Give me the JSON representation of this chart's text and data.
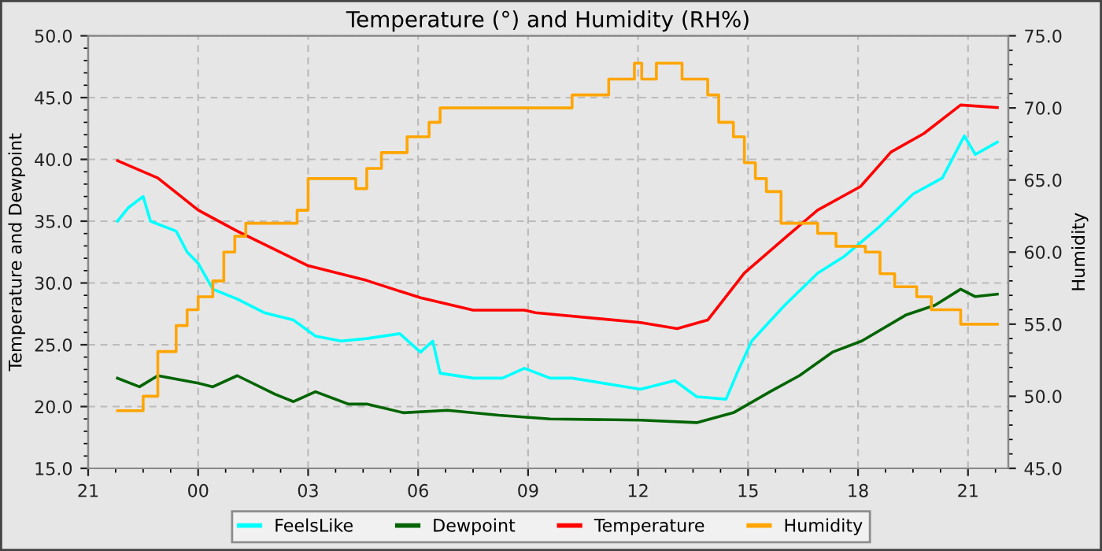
{
  "chart_data": {
    "type": "line",
    "title": "Temperature (°) and Humidity (RH%)",
    "ylabel": "Temperature and Dewpoint",
    "y2label": "Humidity",
    "xlim": [
      "2000-01-01T21:00",
      "2000-01-02T22:06"
    ],
    "xticks": [
      {
        "value": "2000-01-01T21:00",
        "label": "21"
      },
      {
        "value": "2000-01-02T00:00",
        "label": "00"
      },
      {
        "value": "2000-01-02T03:00",
        "label": "03"
      },
      {
        "value": "2000-01-02T06:00",
        "label": "06"
      },
      {
        "value": "2000-01-02T09:00",
        "label": "09"
      },
      {
        "value": "2000-01-02T12:00",
        "label": "12"
      },
      {
        "value": "2000-01-02T15:00",
        "label": "15"
      },
      {
        "value": "2000-01-02T18:00",
        "label": "18"
      },
      {
        "value": "2000-01-02T21:00",
        "label": "21"
      }
    ],
    "ylim": [
      15,
      50
    ],
    "yticks": [
      {
        "value": 15,
        "label": "15.0"
      },
      {
        "value": 20,
        "label": "20.0"
      },
      {
        "value": 25,
        "label": "25.0"
      },
      {
        "value": 30,
        "label": "30.0"
      },
      {
        "value": 35,
        "label": "35.0"
      },
      {
        "value": 40,
        "label": "40.0"
      },
      {
        "value": 45,
        "label": "45.0"
      },
      {
        "value": 50,
        "label": "50.0"
      }
    ],
    "y2lim": [
      45,
      75
    ],
    "y2ticks": [
      {
        "value": 45,
        "label": "45.0"
      },
      {
        "value": 50,
        "label": "50.0"
      },
      {
        "value": 55,
        "label": "55.0"
      },
      {
        "value": 60,
        "label": "60.0"
      },
      {
        "value": 65,
        "label": "65.0"
      },
      {
        "value": 70,
        "label": "70.0"
      },
      {
        "value": 75,
        "label": "75.0"
      }
    ],
    "grid": true,
    "legend": "bottom",
    "marker": "none",
    "line_style": "solid",
    "series": [
      {
        "name": "FeelsLike",
        "color": "#00ffff",
        "x": [
          "2000-01-01T21:48",
          "2000-01-01T22:06",
          "2000-01-01T22:30",
          "2000-01-01T22:42",
          "2000-01-01T23:24",
          "2000-01-01T23:42",
          "2000-01-02T00:00",
          "2000-01-02T00:24",
          "2000-01-02T01:04",
          "2000-01-02T01:48",
          "2000-01-02T02:36",
          "2000-01-02T03:12",
          "2000-01-02T03:54",
          "2000-01-02T04:36",
          "2000-01-02T05:30",
          "2000-01-02T06:04",
          "2000-01-02T06:24",
          "2000-01-02T06:36",
          "2000-01-02T07:30",
          "2000-01-02T08:18",
          "2000-01-02T08:54",
          "2000-01-02T09:36",
          "2000-01-02T10:12",
          "2000-01-02T12:04",
          "2000-01-02T13:00",
          "2000-01-02T13:36",
          "2000-01-02T14:24",
          "2000-01-02T14:42",
          "2000-01-02T15:06",
          "2000-01-02T16:00",
          "2000-01-02T16:54",
          "2000-01-02T17:36",
          "2000-01-02T18:36",
          "2000-01-02T19:30",
          "2000-01-02T20:18",
          "2000-01-02T20:54",
          "2000-01-02T21:12",
          "2000-01-02T21:48"
        ],
        "values": [
          35.0,
          36.1,
          37.0,
          35.0,
          34.2,
          32.5,
          31.6,
          29.5,
          28.7,
          27.6,
          27.0,
          25.7,
          25.3,
          25.5,
          25.9,
          24.4,
          25.3,
          22.7,
          22.3,
          22.3,
          23.1,
          22.3,
          22.3,
          21.4,
          22.1,
          20.8,
          20.6,
          22.7,
          25.3,
          28.2,
          30.8,
          32.1,
          34.6,
          37.2,
          38.5,
          41.9,
          40.4,
          41.4
        ]
      },
      {
        "name": "Dewpoint",
        "color": "#006400",
        "x": [
          "2000-01-01T21:48",
          "2000-01-01T22:24",
          "2000-01-01T22:54",
          "2000-01-02T00:00",
          "2000-01-02T00:24",
          "2000-01-02T01:04",
          "2000-01-02T02:06",
          "2000-01-02T02:36",
          "2000-01-02T03:12",
          "2000-01-02T04:06",
          "2000-01-02T04:36",
          "2000-01-02T05:36",
          "2000-01-02T06:48",
          "2000-01-02T08:12",
          "2000-01-02T09:36",
          "2000-01-02T12:04",
          "2000-01-02T13:36",
          "2000-01-02T14:36",
          "2000-01-02T15:36",
          "2000-01-02T16:24",
          "2000-01-02T17:18",
          "2000-01-02T18:06",
          "2000-01-02T19:18",
          "2000-01-02T20:06",
          "2000-01-02T20:48",
          "2000-01-02T21:12",
          "2000-01-02T21:48"
        ],
        "values": [
          22.3,
          21.6,
          22.5,
          21.9,
          21.6,
          22.5,
          21.0,
          20.4,
          21.2,
          20.2,
          20.2,
          19.5,
          19.7,
          19.3,
          19.0,
          18.9,
          18.7,
          19.5,
          21.2,
          22.5,
          24.4,
          25.3,
          27.4,
          28.2,
          29.5,
          28.9,
          29.1
        ]
      },
      {
        "name": "Temperature",
        "color": "#ff0000",
        "x": [
          "2000-01-01T21:48",
          "2000-01-01T22:54",
          "2000-01-02T00:00",
          "2000-01-02T01:04",
          "2000-01-02T03:00",
          "2000-01-02T04:36",
          "2000-01-02T06:04",
          "2000-01-02T07:30",
          "2000-01-02T08:54",
          "2000-01-02T09:12",
          "2000-01-02T12:04",
          "2000-01-02T13:04",
          "2000-01-02T13:54",
          "2000-01-02T14:54",
          "2000-01-02T16:04",
          "2000-01-02T16:54",
          "2000-01-02T18:04",
          "2000-01-02T18:54",
          "2000-01-02T19:48",
          "2000-01-02T20:48",
          "2000-01-02T21:48"
        ],
        "values": [
          39.9,
          38.5,
          35.9,
          34.2,
          31.4,
          30.2,
          28.8,
          27.8,
          27.8,
          27.6,
          26.8,
          26.3,
          27.0,
          30.8,
          33.8,
          35.9,
          37.8,
          40.6,
          42.1,
          44.4,
          44.2
        ]
      },
      {
        "name": "Humidity",
        "color": "#ffa500",
        "type": "step",
        "axis": "y2",
        "x": [
          "2000-01-01T21:48",
          "2000-01-01T22:24",
          "2000-01-01T22:30",
          "2000-01-01T22:54",
          "2000-01-01T23:24",
          "2000-01-01T23:42",
          "2000-01-02T00:00",
          "2000-01-02T00:24",
          "2000-01-02T00:42",
          "2000-01-02T01:00",
          "2000-01-02T01:18",
          "2000-01-02T02:36",
          "2000-01-02T02:42",
          "2000-01-02T03:00",
          "2000-01-02T04:00",
          "2000-01-02T04:18",
          "2000-01-02T04:36",
          "2000-01-02T05:00",
          "2000-01-02T05:42",
          "2000-01-02T06:18",
          "2000-01-02T06:36",
          "2000-01-02T10:00",
          "2000-01-02T10:12",
          "2000-01-02T11:12",
          "2000-01-02T11:54",
          "2000-01-02T12:06",
          "2000-01-02T12:30",
          "2000-01-02T13:06",
          "2000-01-02T13:12",
          "2000-01-02T13:54",
          "2000-01-02T14:12",
          "2000-01-02T14:36",
          "2000-01-02T14:54",
          "2000-01-02T15:12",
          "2000-01-02T15:30",
          "2000-01-02T15:54",
          "2000-01-02T16:36",
          "2000-01-02T16:54",
          "2000-01-02T17:24",
          "2000-01-02T18:12",
          "2000-01-02T18:36",
          "2000-01-02T19:00",
          "2000-01-02T19:36",
          "2000-01-02T20:00",
          "2000-01-02T20:48",
          "2000-01-02T21:48"
        ],
        "values": [
          49.0,
          49.0,
          50.0,
          53.1,
          54.9,
          56.0,
          56.9,
          58.0,
          60.0,
          61.1,
          62.0,
          62.0,
          62.9,
          65.1,
          65.1,
          64.4,
          65.8,
          66.9,
          68.0,
          69.0,
          70.0,
          70.0,
          70.9,
          72.0,
          73.1,
          72.0,
          73.1,
          73.1,
          72.0,
          70.9,
          69.0,
          68.0,
          66.2,
          65.1,
          64.2,
          62.0,
          62.0,
          61.3,
          60.4,
          60.0,
          58.5,
          57.6,
          56.9,
          56.0,
          55.0,
          55.0
        ]
      }
    ]
  }
}
